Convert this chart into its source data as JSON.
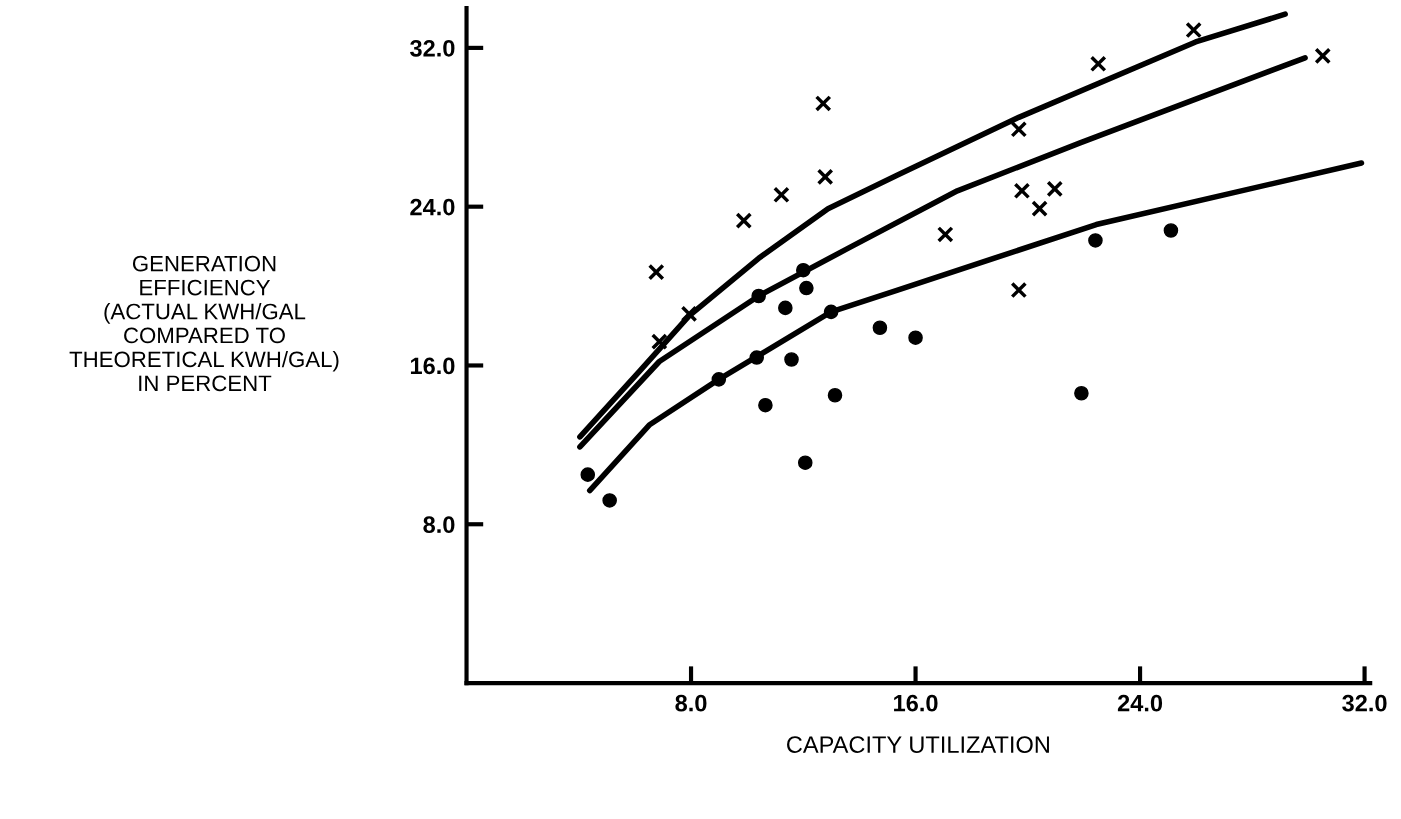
{
  "chart_data": {
    "type": "scatter",
    "xlabel": "CAPACITY UTILIZATION",
    "ylabel": "GENERATION\nEFFICIENCY\n(ACTUAL KWH/GAL\nCOMPARED TO\nTHEORETICAL KWH/GAL)\nIN PERCENT",
    "xlim": [
      0,
      32.2
    ],
    "ylim": [
      0,
      34
    ],
    "xticks": [
      {
        "value": 8,
        "label": "8.0"
      },
      {
        "value": 16,
        "label": "16.0"
      },
      {
        "value": 24,
        "label": "24.0"
      },
      {
        "value": 32,
        "label": "32.0"
      }
    ],
    "yticks": [
      {
        "value": 8,
        "label": "8.0"
      },
      {
        "value": 16,
        "label": "16.0"
      },
      {
        "value": 24,
        "label": "24.0"
      },
      {
        "value": 32,
        "label": "32.0"
      }
    ],
    "grid": false,
    "series": [
      {
        "marker": "cross",
        "color": "#000000",
        "x": [
          6.76,
          7.93,
          6.87,
          9.88,
          11.22,
          12.71,
          12.78,
          17.06,
          19.68,
          19.79,
          20.42,
          20.96,
          19.68,
          22.51,
          25.91,
          30.51
        ],
        "values": [
          20.7,
          18.6,
          17.2,
          23.3,
          24.6,
          29.2,
          25.5,
          22.6,
          27.9,
          24.8,
          23.9,
          24.9,
          19.8,
          31.2,
          32.9,
          31.6
        ]
      },
      {
        "marker": "circle",
        "color": "#000000",
        "x": [
          4.32,
          5.1,
          8.99,
          10.41,
          10.34,
          10.65,
          11.36,
          11.58,
          12.0,
          12.11,
          12.07,
          12.99,
          13.13,
          14.73,
          16.0,
          21.91,
          22.41,
          25.1
        ],
        "values": [
          10.5,
          9.2,
          15.3,
          19.5,
          16.4,
          14.0,
          18.9,
          16.3,
          20.8,
          19.9,
          11.1,
          18.7,
          14.5,
          17.9,
          17.4,
          14.6,
          22.3,
          22.8
        ]
      },
      {
        "type": "line",
        "marker": "none",
        "line_style": "solid",
        "color": "#000000",
        "x": [
          4.04,
          6.16,
          7.93,
          10.41,
          12.88,
          15.36,
          19.68,
          25.98,
          29.17
        ],
        "values": [
          12.4,
          15.7,
          18.5,
          21.4,
          23.9,
          25.6,
          28.5,
          32.3,
          33.7
        ]
      },
      {
        "type": "line",
        "marker": "none",
        "line_style": "solid",
        "color": "#000000",
        "x": [
          4.04,
          6.87,
          10.41,
          13.59,
          17.49,
          21.84,
          29.88
        ],
        "values": [
          11.9,
          16.2,
          19.5,
          21.9,
          24.8,
          27.2,
          31.5
        ]
      },
      {
        "type": "line",
        "marker": "none",
        "line_style": "solid",
        "color": "#000000",
        "x": [
          4.39,
          6.51,
          8.99,
          12.99,
          15.36,
          22.44,
          31.89
        ],
        "values": [
          9.7,
          13.0,
          15.3,
          18.7,
          19.8,
          23.1,
          26.2
        ]
      }
    ]
  }
}
